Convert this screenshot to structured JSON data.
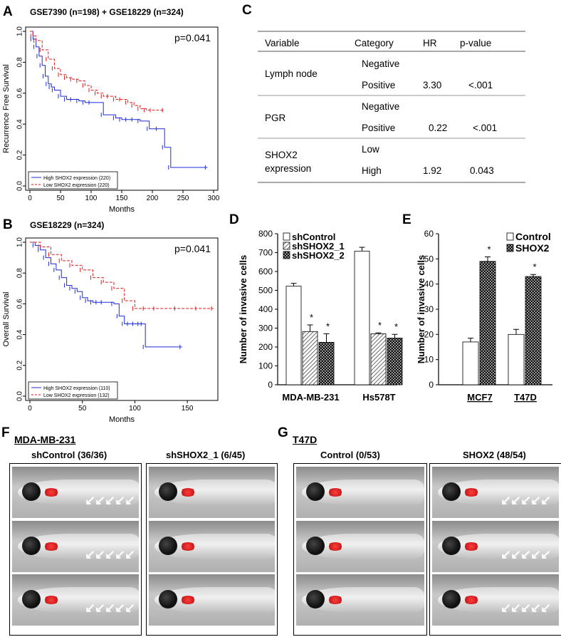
{
  "panels": {
    "A": {
      "label": "A",
      "title": "GSE7390 (n=198) + GSE18229 (n=324)",
      "ylabel": "Recurrence Free Survival",
      "xlabel": "Months",
      "pvalue": "p=0.041",
      "legend": [
        "High SHOX2 expression (220)",
        "Low SHOX2 expression (220)"
      ],
      "xticks": [
        "0",
        "50",
        "100",
        "150",
        "200",
        "250",
        "300"
      ],
      "yticks": [
        "0.0",
        "0.2",
        "0.4",
        "0.6",
        "0.8",
        "1.0"
      ]
    },
    "B": {
      "label": "B",
      "title": "GSE18229 (n=324)",
      "ylabel": "Overall Survival",
      "xlabel": "Months",
      "pvalue": "p=0.041",
      "legend": [
        "High SHOX2 expression (110)",
        "Low SHOX2 expression (132)"
      ],
      "xticks": [
        "0",
        "50",
        "100",
        "150"
      ],
      "yticks": [
        "0.0",
        "0.2",
        "0.4",
        "0.6",
        "0.8",
        "1.0"
      ]
    },
    "C": {
      "label": "C",
      "headers": [
        "Variable",
        "Category",
        "HR",
        "p-value"
      ],
      "rows": [
        {
          "variable": "Lymph node",
          "cat1": "Negative",
          "cat2": "Positive",
          "hr": "3.30",
          "p": "<.001"
        },
        {
          "variable": "PGR",
          "cat1": "Negative",
          "cat2": "Positive",
          "hr": "0.22",
          "p": "<.001"
        },
        {
          "variable": "SHOX2 expression",
          "cat1": "Low",
          "cat2": "High",
          "hr": "1.92",
          "p": "0.043"
        }
      ]
    },
    "D": {
      "label": "D"
    },
    "E": {
      "label": "E"
    },
    "F": {
      "label": "F",
      "cell_line": "MDA-MB-231",
      "left": "shControl (36/36)",
      "right": "shSHOX2_1 (6/45)"
    },
    "G": {
      "label": "G",
      "cell_line": "T47D",
      "left": "Control (0/53)",
      "right": "SHOX2 (48/54)"
    }
  },
  "chart_data": [
    {
      "type": "line",
      "panel": "A",
      "title": "GSE7390 (n=198) + GSE18229 (n=324)",
      "xlabel": "Months",
      "ylabel": "Recurrence Free Survival",
      "xlim": [
        0,
        300
      ],
      "ylim": [
        0,
        1
      ],
      "series": [
        {
          "name": "High SHOX2 expression (220)",
          "color": "#1f2bd6",
          "style": "solid",
          "x": [
            0,
            5,
            10,
            15,
            20,
            25,
            30,
            35,
            40,
            50,
            60,
            70,
            80,
            90,
            100,
            120,
            140,
            150,
            160,
            170,
            180,
            195,
            210,
            220,
            230,
            290
          ],
          "y": [
            1,
            0.95,
            0.9,
            0.84,
            0.78,
            0.71,
            0.66,
            0.64,
            0.62,
            0.58,
            0.56,
            0.56,
            0.55,
            0.54,
            0.54,
            0.46,
            0.44,
            0.43,
            0.43,
            0.43,
            0.42,
            0.37,
            0.37,
            0.25,
            0.12,
            0.12
          ]
        },
        {
          "name": "Low SHOX2 expression (220)",
          "color": "#e21b1b",
          "style": "dashed",
          "x": [
            0,
            5,
            10,
            20,
            30,
            40,
            50,
            60,
            70,
            80,
            90,
            100,
            110,
            120,
            130,
            140,
            150,
            160,
            170,
            180,
            190,
            200,
            220
          ],
          "y": [
            1,
            0.97,
            0.94,
            0.88,
            0.82,
            0.76,
            0.72,
            0.7,
            0.69,
            0.68,
            0.65,
            0.62,
            0.6,
            0.58,
            0.58,
            0.56,
            0.56,
            0.54,
            0.52,
            0.5,
            0.49,
            0.49,
            0.49
          ]
        }
      ]
    },
    {
      "type": "line",
      "panel": "B",
      "title": "GSE18229 (n=324)",
      "xlabel": "Months",
      "ylabel": "Overall Survival",
      "xlim": [
        0,
        175
      ],
      "ylim": [
        0,
        1
      ],
      "series": [
        {
          "name": "High SHOX2 expression (110)",
          "color": "#1f2bd6",
          "style": "solid",
          "x": [
            0,
            5,
            10,
            15,
            20,
            25,
            30,
            35,
            40,
            45,
            50,
            55,
            60,
            65,
            70,
            80,
            85,
            90,
            95,
            100,
            105,
            108,
            110,
            145
          ],
          "y": [
            1,
            0.98,
            0.95,
            0.9,
            0.86,
            0.82,
            0.77,
            0.72,
            0.7,
            0.68,
            0.64,
            0.62,
            0.61,
            0.61,
            0.61,
            0.6,
            0.52,
            0.47,
            0.47,
            0.47,
            0.47,
            0.47,
            0.32,
            0.32
          ]
        },
        {
          "name": "Low SHOX2 expression (132)",
          "color": "#e21b1b",
          "style": "dashed",
          "x": [
            0,
            10,
            20,
            30,
            40,
            50,
            60,
            70,
            80,
            90,
            100,
            110,
            120,
            140,
            160,
            175
          ],
          "y": [
            1,
            0.97,
            0.92,
            0.88,
            0.85,
            0.82,
            0.77,
            0.74,
            0.7,
            0.62,
            0.57,
            0.57,
            0.57,
            0.57,
            0.57,
            0.57
          ]
        }
      ]
    },
    {
      "type": "bar",
      "panel": "D",
      "ylabel": "Number of invasive cells",
      "ylim": [
        0,
        800
      ],
      "yticks": [
        "0",
        "100",
        "200",
        "300",
        "400",
        "500",
        "600",
        "700",
        "800"
      ],
      "categories": [
        "MDA-MB-231",
        "Hs578T"
      ],
      "series": [
        {
          "name": "shControl",
          "values": [
            522,
            708
          ],
          "errors": [
            15,
            20
          ],
          "pattern": "white"
        },
        {
          "name": "shSHOX2_1",
          "values": [
            282,
            270
          ],
          "errors": [
            35,
            5
          ],
          "pattern": "hatch"
        },
        {
          "name": "shSHOX2_2",
          "values": [
            225,
            247
          ],
          "errors": [
            45,
            20
          ],
          "pattern": "dots"
        }
      ],
      "significance": [
        [
          "",
          "*",
          "*"
        ],
        [
          "",
          "*",
          "*"
        ]
      ]
    },
    {
      "type": "bar",
      "panel": "E",
      "ylabel": "Number of invasive cells",
      "ylim": [
        0,
        60
      ],
      "yticks": [
        "0",
        "10",
        "20",
        "30",
        "40",
        "50",
        "60"
      ],
      "categories": [
        "MCF7",
        "T47D"
      ],
      "series": [
        {
          "name": "Control",
          "values": [
            17,
            20
          ],
          "errors": [
            1.5,
            2
          ],
          "pattern": "white"
        },
        {
          "name": "SHOX2",
          "values": [
            49,
            43
          ],
          "errors": [
            1.8,
            0.8
          ],
          "pattern": "dots"
        }
      ],
      "significance": [
        [
          "",
          "*"
        ],
        [
          "",
          "*"
        ]
      ]
    }
  ]
}
